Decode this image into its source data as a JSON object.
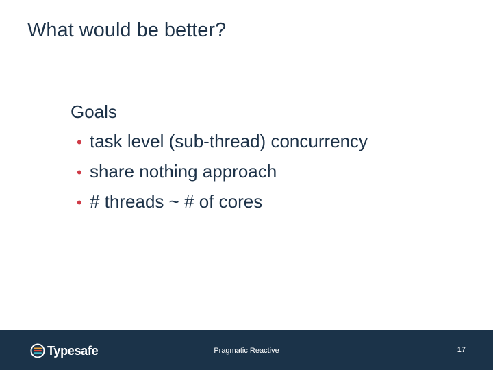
{
  "slide": {
    "title": "What would be better?",
    "section_heading": "Goals",
    "bullets": [
      "task level (sub-thread) concurrency",
      "share nothing approach",
      "# threads ~ # of cores"
    ]
  },
  "footer": {
    "logo_text": "Typesafe",
    "center_text": "Pragmatic Reactive",
    "page_number": "17"
  },
  "colors": {
    "title_text": "#1d3248",
    "bullet_marker": "#cf3a46",
    "footer_background": "#1b3349",
    "footer_text": "#ffffff"
  },
  "icons": {
    "logo": "typesafe-logo-icon",
    "bullet": "bullet-dot-icon"
  }
}
